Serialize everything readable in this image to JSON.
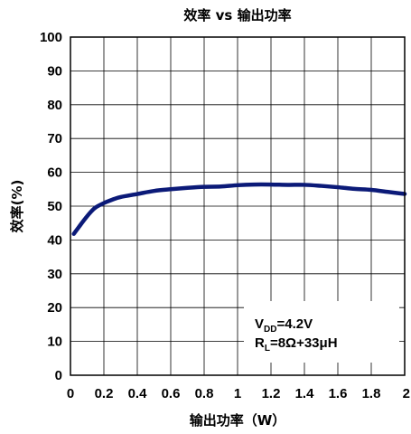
{
  "chart_data": {
    "type": "line",
    "title": "效率 vs 输出功率",
    "xlabel": "输出功率（W）",
    "ylabel": "效率(%)",
    "xlim": [
      0,
      2
    ],
    "ylim": [
      0,
      100
    ],
    "x_ticks": [
      "0",
      "0.2",
      "0.4",
      "0.6",
      "0.8",
      "1",
      "1.2",
      "1.4",
      "1.6",
      "1.8",
      "2"
    ],
    "y_ticks": [
      "0",
      "10",
      "20",
      "30",
      "40",
      "50",
      "60",
      "70",
      "80",
      "90",
      "100"
    ],
    "grid": true,
    "annotation": {
      "line1_main": "V",
      "line1_sub": "DD",
      "line1_rest": "=4.2V",
      "line2_main": "R",
      "line2_sub": "L",
      "line2_rest": "=8Ω+33μH"
    },
    "series": [
      {
        "color": "#0b1a78",
        "x": [
          0.02,
          0.05,
          0.08,
          0.12,
          0.15,
          0.2,
          0.25,
          0.3,
          0.4,
          0.5,
          0.6,
          0.7,
          0.8,
          0.9,
          1.0,
          1.1,
          1.2,
          1.3,
          1.4,
          1.5,
          1.6,
          1.7,
          1.8,
          1.9,
          2.0
        ],
        "y": [
          41.8,
          43.8,
          45.8,
          48.2,
          49.6,
          50.9,
          51.9,
          52.7,
          53.6,
          54.5,
          55.0,
          55.4,
          55.7,
          55.8,
          56.2,
          56.4,
          56.4,
          56.3,
          56.3,
          56.0,
          55.6,
          55.1,
          54.8,
          54.2,
          53.6
        ]
      }
    ]
  }
}
